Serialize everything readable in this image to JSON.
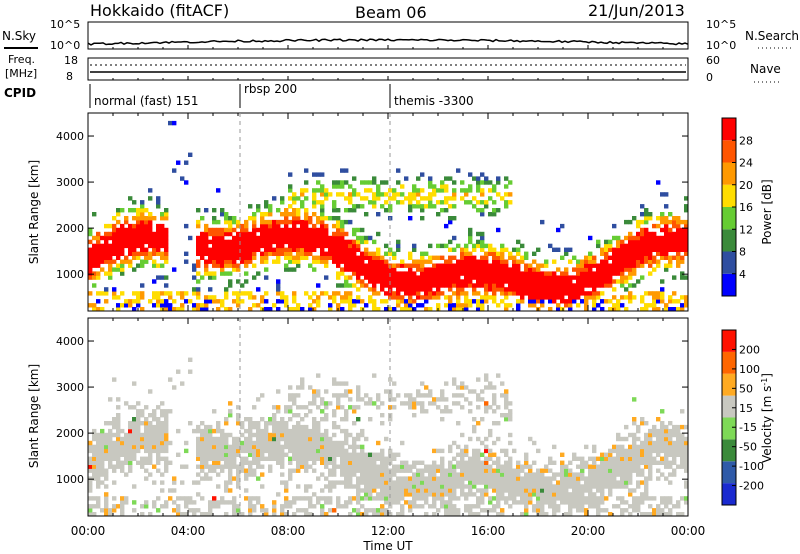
{
  "header": {
    "station": "Hokkaido (fitACF)",
    "beam": "Beam 06",
    "date": "21/Jun/2013"
  },
  "noise_panel": {
    "left_label": "N.Sky",
    "right_label": "N.Search",
    "left_ticks": [
      "10^5",
      "10^0"
    ],
    "right_ticks": [
      "10^5",
      "10^0"
    ]
  },
  "freq_panel": {
    "left_label_1": "Freq.",
    "left_label_2": "[MHz]",
    "left_ticks": [
      "18",
      "8"
    ],
    "right_label": "Nave",
    "right_ticks": [
      "60",
      "0"
    ]
  },
  "cpid_panel": {
    "label": "CPID",
    "segments": [
      "normal (fast) 151",
      "rbsp 200",
      "themis -3300"
    ]
  },
  "chart_data": [
    {
      "type": "heatmap",
      "name": "power",
      "ylabel": "Slant Range [km]",
      "yticks": [
        1000,
        2000,
        3000,
        4000
      ],
      "ylim": [
        200,
        4500
      ],
      "xlim": [
        0,
        24
      ],
      "xticks": [
        "00:00",
        "04:00",
        "08:00",
        "12:00",
        "16:00",
        "20:00",
        "00:00"
      ],
      "colorbar_label": "Power [dB]",
      "colorbar_ticks": [
        "28",
        "24",
        "20",
        "16",
        "12",
        "8",
        "4"
      ],
      "colors": [
        "#0000ff",
        "#2f4ea0",
        "#3a8a3a",
        "#66cc33",
        "#ffdd00",
        "#ff9900",
        "#ff5500",
        "#ff0000"
      ]
    },
    {
      "type": "heatmap",
      "name": "velocity",
      "ylabel": "Slant Range [km]",
      "yticks": [
        1000,
        2000,
        3000,
        4000
      ],
      "ylim": [
        200,
        4500
      ],
      "xlim": [
        0,
        24
      ],
      "xticks": [
        "00:00",
        "04:00",
        "08:00",
        "12:00",
        "16:00",
        "20:00",
        "00:00"
      ],
      "xlabel": "Time UT",
      "colorbar_label": "Velocity [m s^-1]",
      "colorbar_ticks": [
        "200",
        "100",
        "50",
        "15",
        "-15",
        "-50",
        "-100",
        "-200"
      ],
      "colors": [
        "#1a2ad0",
        "#2f5aa8",
        "#3a8a3a",
        "#7ed957",
        "#c8c8c0",
        "#ffaa22",
        "#ff6600",
        "#ff1100"
      ]
    }
  ]
}
